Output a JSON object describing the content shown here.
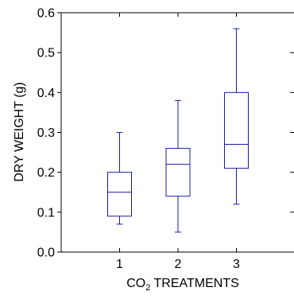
{
  "chart_data": {
    "type": "boxplot",
    "title": "",
    "xlabel_prefix": "CO",
    "xlabel_subscript": "2",
    "xlabel_suffix": " TREATMENTS",
    "ylabel": "DRY WEIGHT (g)",
    "ylim": [
      0.0,
      0.6
    ],
    "xlim": [
      0,
      4
    ],
    "yticks": [
      "0.0",
      "0.1",
      "0.2",
      "0.3",
      "0.4",
      "0.5",
      "0.6"
    ],
    "categories": [
      "1",
      "2",
      "3"
    ],
    "boxes": [
      {
        "category": "1",
        "min": 0.07,
        "q1": 0.09,
        "median": 0.15,
        "q3": 0.2,
        "max": 0.3
      },
      {
        "category": "2",
        "min": 0.05,
        "q1": 0.14,
        "median": 0.22,
        "q3": 0.26,
        "max": 0.38
      },
      {
        "category": "3",
        "min": 0.12,
        "q1": 0.21,
        "median": 0.27,
        "q3": 0.4,
        "max": 0.56
      }
    ],
    "box_color": "#1a1aa8",
    "axis_color": "#000000",
    "grid": false,
    "legend": "none"
  }
}
